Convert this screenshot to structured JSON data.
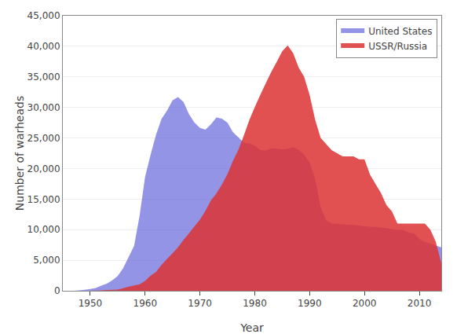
{
  "chart_data": {
    "type": "area",
    "xlabel": "Year",
    "ylabel": "Number of warheads",
    "x": [
      1945,
      1946,
      1947,
      1948,
      1949,
      1950,
      1951,
      1952,
      1953,
      1954,
      1955,
      1956,
      1957,
      1958,
      1959,
      1960,
      1961,
      1962,
      1963,
      1964,
      1965,
      1966,
      1967,
      1968,
      1969,
      1970,
      1971,
      1972,
      1973,
      1974,
      1975,
      1976,
      1977,
      1978,
      1979,
      1980,
      1981,
      1982,
      1983,
      1984,
      1985,
      1986,
      1987,
      1988,
      1989,
      1990,
      1991,
      1992,
      1993,
      1994,
      1995,
      1996,
      1997,
      1998,
      1999,
      2000,
      2001,
      2002,
      2003,
      2004,
      2005,
      2006,
      2007,
      2008,
      2009,
      2010,
      2011,
      2012,
      2013,
      2014
    ],
    "series": [
      {
        "name": "United States",
        "color": "#6666dd",
        "values": [
          2,
          9,
          13,
          50,
          170,
          299,
          438,
          832,
          1169,
          1703,
          2422,
          3692,
          5543,
          7345,
          12298,
          18638,
          22229,
          25540,
          28133,
          29463,
          31139,
          31700,
          30893,
          28884,
          27527,
          26662,
          26365,
          27227,
          28335,
          28170,
          27519,
          25956,
          25099,
          24243,
          24107,
          23764,
          23031,
          22937,
          23305,
          23228,
          23135,
          23254,
          23490,
          23065,
          22217,
          21004,
          18306,
          13731,
          11536,
          10979,
          10953,
          10886,
          10829,
          10763,
          10685,
          10577,
          10491,
          10454,
          10350,
          10240,
          10104,
          9962,
          9938,
          9552,
          9400,
          8500,
          8000,
          7700,
          7400,
          7100
        ]
      },
      {
        "name": "USSR/Russia",
        "color": "#dd3333",
        "values": [
          0,
          0,
          0,
          0,
          1,
          5,
          25,
          50,
          120,
          150,
          200,
          426,
          660,
          869,
          1060,
          1605,
          2471,
          3100,
          4238,
          5221,
          6129,
          7089,
          8339,
          9399,
          10538,
          11643,
          13092,
          14787,
          15915,
          17385,
          19055,
          21205,
          23044,
          25393,
          27935,
          30062,
          32049,
          33952,
          35804,
          37431,
          39197,
          40159,
          38859,
          36500,
          35000,
          32000,
          28000,
          25000,
          24000,
          23000,
          22500,
          22000,
          22000,
          22000,
          21500,
          21500,
          19000,
          17500,
          16000,
          14000,
          13000,
          11000,
          11000,
          11000,
          11000,
          11000,
          11000,
          10000,
          8000,
          4500
        ]
      }
    ],
    "xlim": [
      1945,
      2014
    ],
    "xticks": [
      1950,
      1960,
      1970,
      1980,
      1990,
      2000,
      2010
    ],
    "ylim": [
      0,
      45000
    ],
    "yticks": [
      0,
      {
        "value": 5000,
        "label": "5,000"
      },
      {
        "value": 10000,
        "label": "10,000"
      },
      {
        "value": 15000,
        "label": "15,000"
      },
      {
        "value": 20000,
        "label": "20,000"
      },
      {
        "value": 25000,
        "label": "25,000"
      },
      {
        "value": 30000,
        "label": "30,000"
      },
      {
        "value": 35000,
        "label": "35,000"
      },
      {
        "value": 40000,
        "label": "40,000"
      },
      {
        "value": 45000,
        "label": "45,000"
      }
    ],
    "grid": "y",
    "legend": "upper right"
  }
}
